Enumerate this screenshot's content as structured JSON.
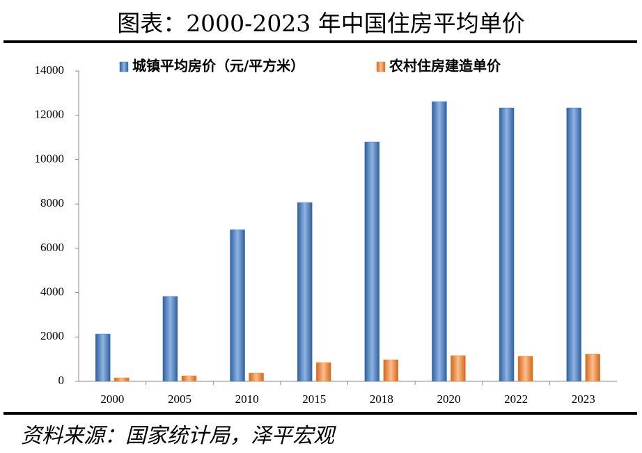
{
  "chart_data": {
    "type": "bar",
    "title": "图表：2000-2023 年中国住房平均单价",
    "source": "资料来源：国家统计局，泽平宏观",
    "categories": [
      "2000",
      "2005",
      "2010",
      "2015",
      "2018",
      "2020",
      "2022",
      "2023"
    ],
    "series": [
      {
        "name": "城镇平均房价（元/平方米）",
        "color": "#4a7ebb",
        "values": [
          2134,
          3830,
          6843,
          8067,
          10798,
          12619,
          12336,
          12336
        ]
      },
      {
        "name": "农村住房建造单价",
        "color": "#f08c3c",
        "values": [
          157,
          251,
          377,
          847,
          973,
          1161,
          1130,
          1224
        ]
      }
    ],
    "ylim": [
      0,
      14000
    ],
    "yticks": [
      0,
      2000,
      4000,
      6000,
      8000,
      10000,
      12000,
      14000
    ],
    "grid": false
  }
}
